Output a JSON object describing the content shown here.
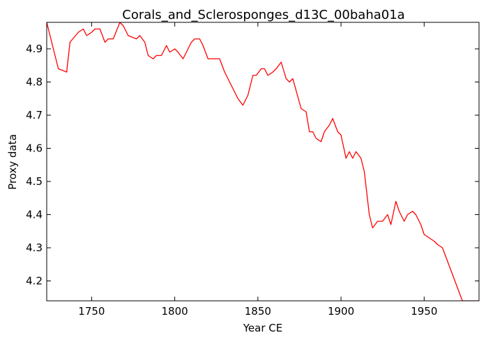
{
  "chart_data": {
    "type": "line",
    "title": "Corals_and_Sclerosponges_d13C_00baha01a",
    "xlabel": "Year CE",
    "ylabel": "Proxy data",
    "xlim": [
      1723,
      1983
    ],
    "ylim": [
      4.14,
      4.98
    ],
    "xticks": [
      1750,
      1800,
      1850,
      1900,
      1950
    ],
    "yticks": [
      4.2,
      4.3,
      4.4,
      4.5,
      4.6,
      4.7,
      4.8,
      4.9
    ],
    "grid": false,
    "line_color": "#ff0000",
    "series": [
      {
        "x": [
          1723,
          1730,
          1735,
          1737,
          1742,
          1745,
          1747,
          1750,
          1752,
          1755,
          1758,
          1760,
          1763,
          1767,
          1769,
          1772,
          1777,
          1779,
          1782,
          1784,
          1787,
          1789,
          1792,
          1795,
          1797,
          1800,
          1802,
          1805,
          1810,
          1812,
          1815,
          1817,
          1820,
          1825,
          1827,
          1830,
          1835,
          1838,
          1841,
          1844,
          1847,
          1849,
          1852,
          1854,
          1856,
          1859,
          1861,
          1864,
          1867,
          1869,
          1871,
          1876,
          1879,
          1881,
          1883,
          1885,
          1888,
          1890,
          1893,
          1895,
          1898,
          1900,
          1903,
          1905,
          1907,
          1909,
          1912,
          1914,
          1917,
          1919,
          1922,
          1925,
          1928,
          1930,
          1933,
          1935,
          1938,
          1940,
          1943,
          1945,
          1948,
          1950,
          1953,
          1956,
          1958,
          1961,
          1964,
          1967,
          1970,
          1973,
          1976,
          1979,
          1983
        ],
        "y": [
          4.98,
          4.84,
          4.83,
          4.92,
          4.95,
          4.96,
          4.94,
          4.95,
          4.96,
          4.96,
          4.92,
          4.93,
          4.93,
          4.98,
          4.97,
          4.94,
          4.93,
          4.94,
          4.92,
          4.88,
          4.87,
          4.88,
          4.88,
          4.91,
          4.89,
          4.9,
          4.89,
          4.87,
          4.92,
          4.93,
          4.93,
          4.91,
          4.87,
          4.87,
          4.87,
          4.83,
          4.78,
          4.75,
          4.73,
          4.76,
          4.82,
          4.82,
          4.84,
          4.84,
          4.82,
          4.83,
          4.84,
          4.86,
          4.81,
          4.8,
          4.81,
          4.72,
          4.71,
          4.65,
          4.65,
          4.63,
          4.62,
          4.65,
          4.67,
          4.69,
          4.65,
          4.64,
          4.57,
          4.59,
          4.57,
          4.59,
          4.57,
          4.53,
          4.4,
          4.36,
          4.38,
          4.38,
          4.4,
          4.37,
          4.44,
          4.41,
          4.38,
          4.4,
          4.41,
          4.4,
          4.37,
          4.34,
          4.33,
          4.32,
          4.31,
          4.3,
          4.26,
          4.22,
          4.18,
          4.14,
          4.14,
          4.14,
          4.14
        ]
      }
    ]
  }
}
